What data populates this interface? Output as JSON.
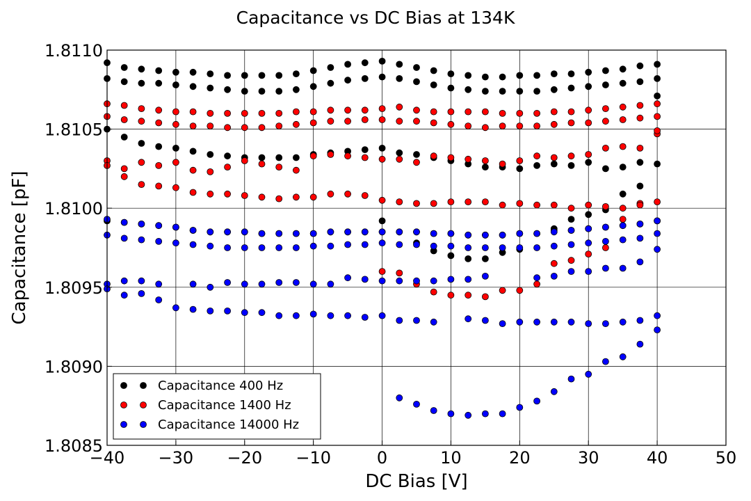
{
  "chart_data": {
    "type": "scatter",
    "title": "Capacitance vs DC Bias at 134K",
    "xlabel": "DC Bias [V]",
    "ylabel": "Capacitance [pF]",
    "xlim": [
      -40,
      50
    ],
    "ylim": [
      1.8085,
      1.811
    ],
    "xticks": [
      -40,
      -30,
      -20,
      -10,
      0,
      10,
      20,
      30,
      40,
      50
    ],
    "xtick_labels": [
      "−40",
      "−30",
      "−20",
      "−10",
      "0",
      "10",
      "20",
      "30",
      "40",
      "50"
    ],
    "yticks": [
      1.8085,
      1.809,
      1.8095,
      1.81,
      1.8105,
      1.811
    ],
    "ytick_labels": [
      "1.8085",
      "1.8090",
      "1.8095",
      "1.8100",
      "1.8105",
      "1.8110"
    ],
    "grid": true,
    "legend_position": "lower-left",
    "x": [
      -40,
      -37.5,
      -35,
      -32.5,
      -30,
      -27.5,
      -25,
      -22.5,
      -20,
      -17.5,
      -15,
      -12.5,
      -10,
      -7.5,
      -5,
      -2.5,
      0,
      2.5,
      5,
      7.5,
      10,
      12.5,
      15,
      17.5,
      20,
      22.5,
      25,
      27.5,
      30,
      32.5,
      35,
      37.5,
      40
    ],
    "series": [
      {
        "name": "Capacitance 400 Hz",
        "color": "#000000",
        "curves": [
          [
            1.81092,
            1.81089,
            1.81088,
            1.81087,
            1.81086,
            1.81086,
            1.81085,
            1.81084,
            1.81084,
            1.81084,
            1.81084,
            1.81085,
            1.81087,
            1.81089,
            1.81091,
            1.81092,
            1.81093,
            1.81091,
            1.81089,
            1.81087,
            1.81085,
            1.81084,
            1.81083,
            1.81083,
            1.81084,
            1.81084,
            1.81085,
            1.81085,
            1.81086,
            1.81087,
            1.81088,
            1.8109,
            1.81091
          ],
          [
            1.81082,
            1.8108,
            1.81079,
            1.81079,
            1.81078,
            1.81077,
            1.81076,
            1.81075,
            1.81074,
            1.81074,
            1.81074,
            1.81075,
            1.81077,
            1.81079,
            1.81081,
            1.81082,
            1.81083,
            1.81082,
            1.8108,
            1.81078,
            1.81076,
            1.81075,
            1.81074,
            1.81074,
            1.81074,
            1.81074,
            1.81075,
            1.81076,
            1.81077,
            1.81078,
            1.81079,
            1.8108,
            1.81082
          ],
          [
            1.8105,
            1.81045,
            1.81041,
            1.81039,
            1.81038,
            1.81036,
            1.81034,
            1.81033,
            1.81032,
            1.81032,
            1.81032,
            1.81032,
            1.81034,
            1.81035,
            1.81036,
            1.81037,
            1.81038,
            1.81035,
            1.81034,
            1.81032,
            1.8103,
            1.81028,
            1.81026,
            1.81026,
            1.81025,
            1.81027,
            1.81028,
            1.81027,
            1.81029,
            1.81025,
            1.81026,
            1.81029,
            1.81028
          ],
          [
            1.80992,
            1.80991,
            1.8099,
            1.80989,
            1.80988,
            1.80986,
            1.80985,
            1.80985,
            1.80985,
            1.80984,
            1.80984,
            1.80984,
            1.80984,
            1.80985,
            1.80985,
            1.80985,
            1.80985,
            1.80985,
            1.80985,
            1.80984,
            1.80984,
            1.80983,
            1.80983,
            1.80983,
            1.80984,
            1.80984,
            1.80986,
            1.80986,
            1.80987,
            1.80988,
            1.80989,
            1.8099,
            1.80992
          ],
          [
            null,
            null,
            null,
            null,
            null,
            null,
            null,
            null,
            null,
            null,
            null,
            null,
            null,
            null,
            null,
            null,
            1.80992,
            null,
            1.80978,
            1.80973,
            1.8097,
            1.80968,
            1.80968,
            1.80972,
            1.80974,
            null,
            1.80987,
            1.80993,
            1.80996,
            1.80999,
            1.81009,
            1.81014,
            1.81071
          ]
        ]
      },
      {
        "name": "Capacitance 1400 Hz",
        "color": "#ff0000",
        "curves": [
          [
            1.81066,
            1.81065,
            1.81063,
            1.81062,
            1.81061,
            1.81061,
            1.8106,
            1.8106,
            1.8106,
            1.8106,
            1.8106,
            1.81061,
            1.81061,
            1.81062,
            1.81062,
            1.81062,
            1.81063,
            1.81064,
            1.81062,
            1.81061,
            1.81061,
            1.81061,
            1.81061,
            1.8106,
            1.8106,
            1.8106,
            1.81061,
            1.81061,
            1.81062,
            1.81063,
            1.81064,
            1.81065,
            1.81066
          ],
          [
            1.81058,
            1.81056,
            1.81055,
            1.81054,
            1.81053,
            1.81052,
            1.81052,
            1.81051,
            1.81051,
            1.81051,
            1.81052,
            1.81053,
            1.81054,
            1.81055,
            1.81055,
            1.81056,
            1.81056,
            1.81055,
            1.81055,
            1.81054,
            1.81053,
            1.81052,
            1.81051,
            1.81052,
            1.81052,
            1.81052,
            1.81053,
            1.81054,
            1.81054,
            1.81055,
            1.81056,
            1.81057,
            1.81058
          ],
          [
            1.8103,
            1.81025,
            1.81029,
            1.81027,
            1.81029,
            1.81024,
            1.81023,
            1.81026,
            1.8103,
            1.81028,
            1.81026,
            1.81024,
            1.81033,
            1.81034,
            1.81033,
            1.81032,
            1.81031,
            1.81031,
            1.81029,
            1.81033,
            1.81032,
            1.81031,
            1.8103,
            1.81028,
            1.8103,
            1.81033,
            1.81032,
            1.81033,
            1.81034,
            1.81038,
            1.81039,
            1.81038,
            1.81047
          ],
          [
            1.81027,
            1.8102,
            1.81015,
            1.81014,
            1.81013,
            1.8101,
            1.81009,
            1.81009,
            1.81008,
            1.81007,
            1.81006,
            1.81007,
            1.81007,
            1.81009,
            1.81009,
            1.81008,
            1.81005,
            1.81004,
            1.81003,
            1.81003,
            1.81004,
            1.81004,
            1.81004,
            1.81002,
            1.81003,
            1.81002,
            1.81002,
            1.81,
            1.81002,
            1.81001,
            1.81,
            1.81003,
            1.81004
          ],
          [
            null,
            null,
            null,
            null,
            null,
            null,
            null,
            null,
            null,
            null,
            null,
            null,
            null,
            null,
            null,
            null,
            1.8096,
            1.80959,
            1.80952,
            1.80947,
            1.80945,
            1.80945,
            1.80944,
            1.80948,
            1.80948,
            1.80952,
            1.80965,
            1.80967,
            1.80971,
            1.80975,
            1.80993,
            1.81002,
            1.81049
          ]
        ]
      },
      {
        "name": "Capacitance 14000 Hz",
        "color": "#0000ff",
        "curves": [
          [
            1.80993,
            1.80991,
            1.8099,
            1.80989,
            1.80988,
            1.80986,
            1.80985,
            1.80985,
            1.80985,
            1.80984,
            1.80984,
            1.80984,
            1.80984,
            1.80985,
            1.80985,
            1.80985,
            1.80985,
            1.80985,
            1.80985,
            1.80984,
            1.80984,
            1.80983,
            1.80983,
            1.80983,
            1.80984,
            1.80984,
            1.80985,
            1.80986,
            1.80987,
            1.80988,
            1.80989,
            1.8099,
            1.80992
          ],
          [
            1.80983,
            1.80981,
            1.8098,
            1.80979,
            1.80978,
            1.80977,
            1.80976,
            1.80975,
            1.80975,
            1.80975,
            1.80975,
            1.80975,
            1.80976,
            1.80976,
            1.80977,
            1.80977,
            1.80978,
            1.80977,
            1.80977,
            1.80976,
            1.80976,
            1.80975,
            1.80975,
            1.80975,
            1.80975,
            1.80975,
            1.80976,
            1.80977,
            1.80978,
            1.80979,
            1.8098,
            1.80981,
            1.80984
          ],
          [
            1.80952,
            1.80954,
            1.80954,
            1.80952,
            null,
            1.80952,
            1.8095,
            1.80953,
            1.80952,
            1.80952,
            1.80953,
            1.80953,
            1.80952,
            1.80952,
            1.80956,
            1.80955,
            1.80954,
            1.80954,
            1.80954,
            1.80954,
            1.80955,
            1.80955,
            1.80957,
            null,
            null,
            1.80956,
            1.80957,
            1.8096,
            1.8096,
            1.80962,
            1.80962,
            1.80966,
            1.80974
          ],
          [
            1.80949,
            1.80945,
            1.80946,
            1.80942,
            1.80937,
            1.80936,
            1.80935,
            1.80935,
            1.80934,
            1.80934,
            1.80932,
            1.80932,
            1.80933,
            1.80932,
            1.80932,
            1.80931,
            1.80932,
            1.80929,
            1.80929,
            1.80928,
            null,
            1.8093,
            1.80929,
            1.80927,
            1.80928,
            1.80928,
            1.80928,
            1.80928,
            1.80927,
            1.80927,
            1.80928,
            1.80929,
            1.80932
          ],
          [
            null,
            null,
            null,
            null,
            null,
            null,
            null,
            null,
            null,
            null,
            null,
            null,
            null,
            null,
            null,
            null,
            null,
            1.8088,
            1.80876,
            1.80872,
            1.8087,
            1.80869,
            1.8087,
            1.8087,
            1.80874,
            1.80878,
            1.80884,
            1.80892,
            1.80895,
            1.80903,
            1.80906,
            1.80914,
            1.80923
          ]
        ]
      }
    ]
  }
}
